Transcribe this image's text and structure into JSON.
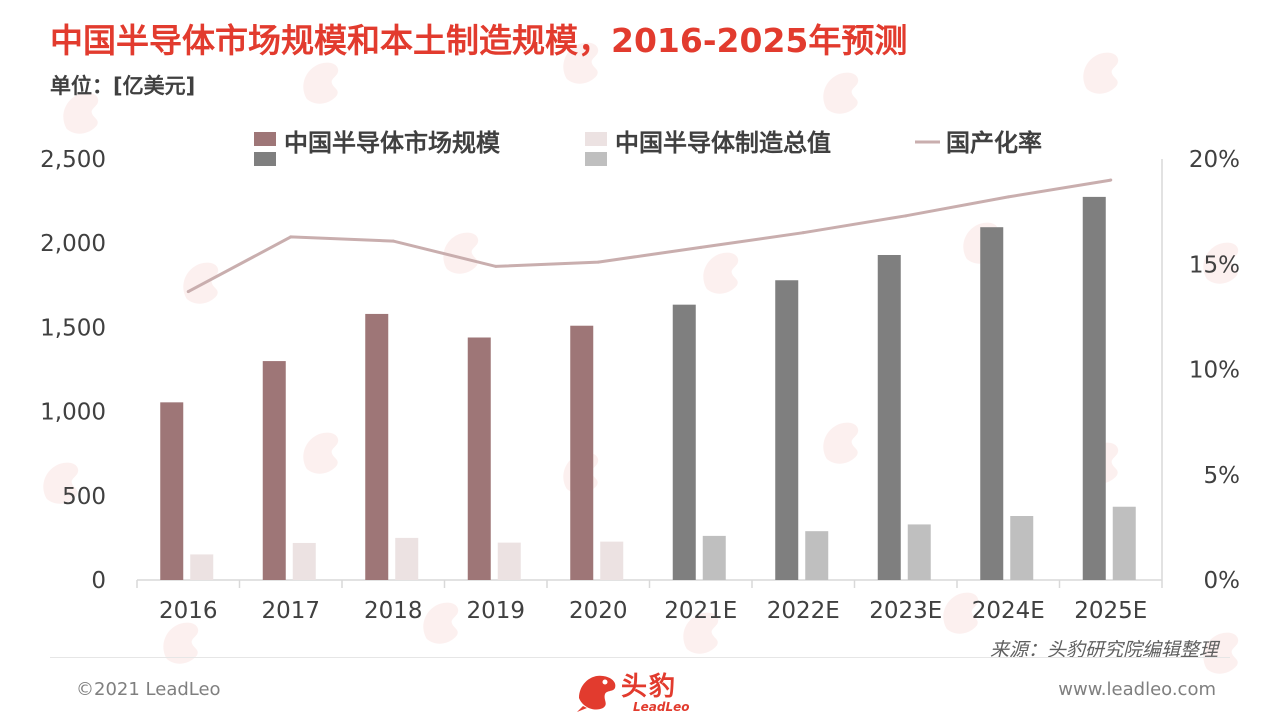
{
  "header": {
    "title": "中国半导体市场规模和本土制造规模，2016-2025年预测",
    "unit": "单位：[亿美元]"
  },
  "footer": {
    "source": "来源：头豹研究院编辑整理",
    "copyright": "©2021 LeadLeo",
    "website": "www.leadleo.com",
    "logo_cn": "头豹",
    "logo_en": "LeadLeo"
  },
  "colors": {
    "market_actual": "#9e7677",
    "manufacturing_actual": "#ece2e2",
    "market_forecast": "#7f7f7f",
    "manufacturing_forecast": "#bfbfbf",
    "localization_line": "#c9aeae",
    "title": "#e23b2e"
  },
  "chart_data": {
    "type": "bar",
    "categories": [
      "2016",
      "2017",
      "2018",
      "2019",
      "2020",
      "2021E",
      "2022E",
      "2023E",
      "2024E",
      "2025E"
    ],
    "forecast_from_index": 5,
    "series": [
      {
        "name": "中国半导体市场规模",
        "kind": "bar",
        "axis": "left",
        "values": [
          1055,
          1300,
          1580,
          1440,
          1510,
          1635,
          1780,
          1930,
          2095,
          2275
        ]
      },
      {
        "name": "中国半导体制造总值",
        "kind": "bar",
        "axis": "left",
        "values": [
          152,
          220,
          250,
          222,
          228,
          262,
          290,
          330,
          380,
          435
        ]
      },
      {
        "name": "国产化率",
        "kind": "line",
        "axis": "right",
        "values": [
          13.7,
          16.3,
          16.1,
          14.9,
          15.1,
          15.8,
          16.5,
          17.3,
          18.2,
          19.0
        ]
      }
    ],
    "left_axis": {
      "ylim": [
        0,
        2500
      ],
      "ticks": [
        "0",
        "500",
        "1,000",
        "1,500",
        "2,000",
        "2,500"
      ]
    },
    "right_axis": {
      "ylim": [
        0,
        20
      ],
      "ticks": [
        "0%",
        "5%",
        "10%",
        "15%",
        "20%"
      ]
    },
    "legend": {
      "placement": "top"
    },
    "grid": false
  }
}
